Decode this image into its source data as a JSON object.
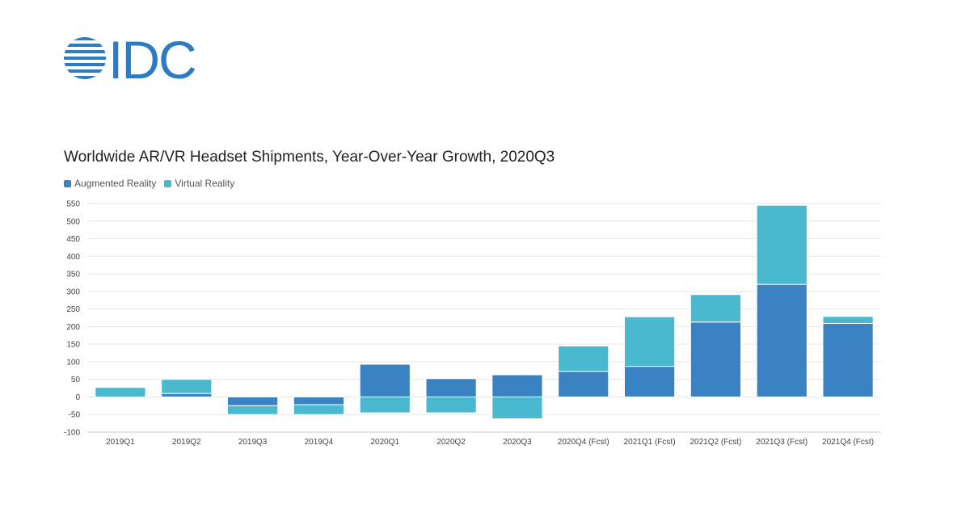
{
  "logo": {
    "text": "IDC",
    "color": "#2e7bc4"
  },
  "chart_data": {
    "type": "bar",
    "stacked": true,
    "title": "Worldwide AR/VR Headset Shipments, Year-Over-Year Growth, 2020Q3",
    "xlabel": "",
    "ylabel": "",
    "ylim": [
      -100,
      550
    ],
    "yticks": [
      -100,
      -50,
      0,
      50,
      100,
      150,
      200,
      250,
      300,
      350,
      400,
      450,
      500,
      550
    ],
    "grid": true,
    "legend_position": "top-left",
    "categories": [
      "2019Q1",
      "2019Q2",
      "2019Q3",
      "2019Q4",
      "2020Q1",
      "2020Q2",
      "2020Q3",
      "2020Q4 (Fcst)",
      "2021Q1 (Fcst)",
      "2021Q2 (Fcst)",
      "2021Q3 (Fcst)",
      "2021Q4 (Fcst)"
    ],
    "series": [
      {
        "name": "Augmented Reality",
        "color": "#3a82c2",
        "values": [
          -2,
          10,
          -25,
          -22,
          93,
          52,
          63,
          73,
          87,
          213,
          320,
          209
        ]
      },
      {
        "name": "Virtual Reality",
        "color": "#4ab8cf",
        "values": [
          27,
          40,
          -25,
          -28,
          -45,
          -45,
          -62,
          72,
          141,
          78,
          225,
          20
        ]
      }
    ]
  }
}
